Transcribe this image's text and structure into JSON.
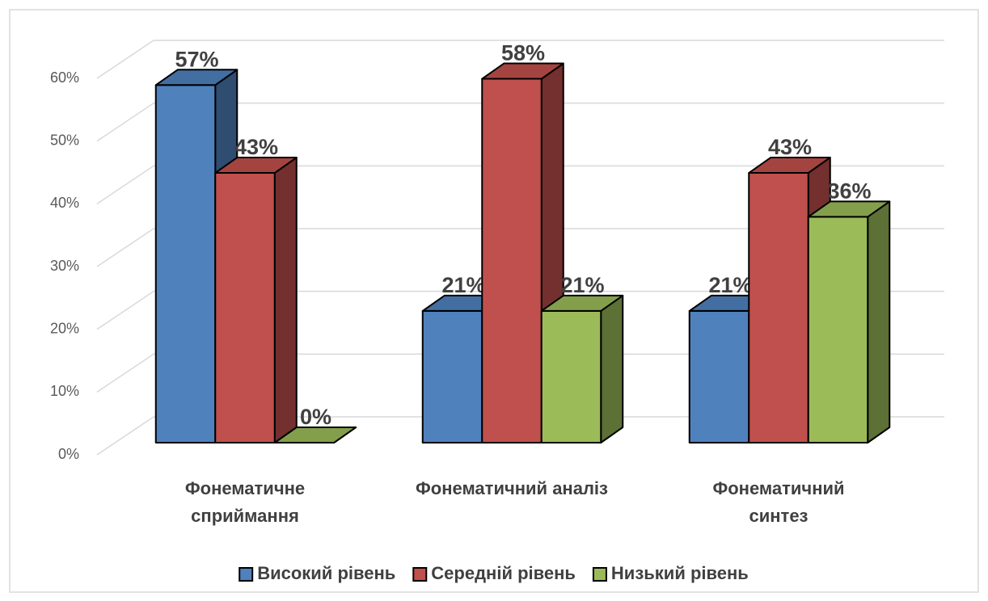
{
  "chart_data": {
    "type": "bar3d",
    "categories": [
      "Фонематичне\nсприймання",
      "Фонематичний аналіз",
      "Фонематичний\nсинтез"
    ],
    "series": [
      {
        "name": "Високий рівень",
        "color": "#4f81bd",
        "values": [
          57,
          21,
          21
        ],
        "value_labels": [
          "57%",
          "21%",
          "21%"
        ]
      },
      {
        "name": "Середній рівень",
        "color": "#c0504d",
        "values": [
          43,
          58,
          43
        ],
        "value_labels": [
          "43%",
          "58%",
          "43%"
        ]
      },
      {
        "name": "Низький рівень",
        "color": "#9bbb59",
        "values": [
          0,
          21,
          36
        ],
        "value_labels": [
          "0%",
          "21%",
          "36%"
        ]
      }
    ],
    "ylim": [
      0,
      60
    ],
    "yticks": [
      {
        "value": 0,
        "label": "0%"
      },
      {
        "value": 10,
        "label": "10%"
      },
      {
        "value": 20,
        "label": "20%"
      },
      {
        "value": 30,
        "label": "30%"
      },
      {
        "value": 40,
        "label": "40%"
      },
      {
        "value": 50,
        "label": "50%"
      },
      {
        "value": 60,
        "label": "60%"
      }
    ],
    "grid": true,
    "legend": "bottom"
  }
}
